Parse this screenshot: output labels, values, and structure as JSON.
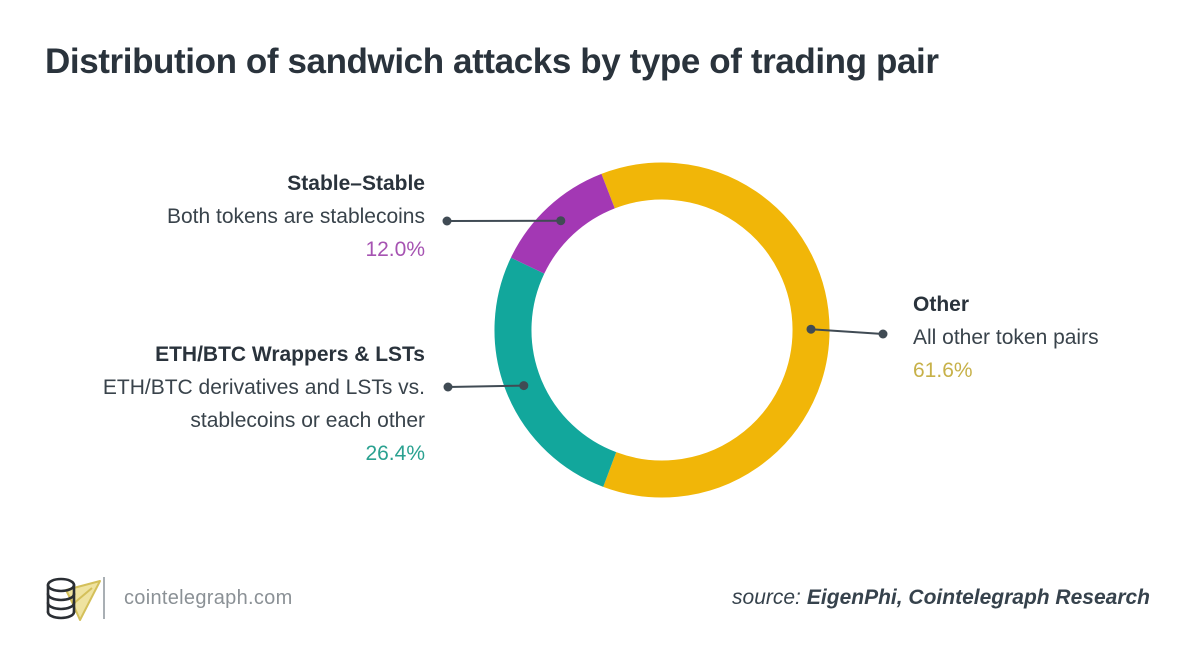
{
  "header": {
    "title": "Distribution of sandwich attacks by type of trading pair"
  },
  "chart_data": {
    "type": "pie",
    "subtype": "donut",
    "title": "Distribution of sandwich attacks by type of trading pair",
    "direction": "clockwise",
    "start_angle_deg": -21.2,
    "total_pct": 100,
    "segments": [
      {
        "label": "Other",
        "description_lines": [
          "All other token pairs"
        ],
        "value_pct": 61.6,
        "value_label": "61.6%",
        "color": "#F1B608",
        "value_text_color": "#C7B149"
      },
      {
        "label": "ETH/BTC Wrappers & LSTs",
        "description_lines": [
          "ETH/BTC derivatives and LSTs vs.",
          "stablecoins or each other"
        ],
        "value_pct": 26.4,
        "value_label": "26.4%",
        "color": "#12A79C",
        "value_text_color": "#2AA190"
      },
      {
        "label": "Stable–Stable",
        "description_lines": [
          "Both tokens are stablecoins"
        ],
        "value_pct": 12.0,
        "value_label": "12.0%",
        "color": "#A338B4",
        "value_text_color": "#A653B2"
      }
    ]
  },
  "footer": {
    "site_label": "cointelegraph.com",
    "source_prefix": "source:",
    "source_names": "EigenPhi, Cointelegraph Research"
  },
  "colors": {
    "background": "#FFFFFF",
    "title_text": "#2A333C",
    "label_heading": "#2A333C",
    "label_body": "#39434B",
    "callout_line": "#404B54",
    "footer_site_text": "#8B9196",
    "footer_source_text": "#36424C",
    "footer_divider": "#A9AFB4",
    "logo_coin_stroke": "#2A2E33",
    "logo_plane_fill": "#EFE3A0",
    "logo_plane_stroke": "#D4C05A"
  },
  "icons": {
    "logo": "cointelegraph-coin-stack-with-paper-plane"
  }
}
